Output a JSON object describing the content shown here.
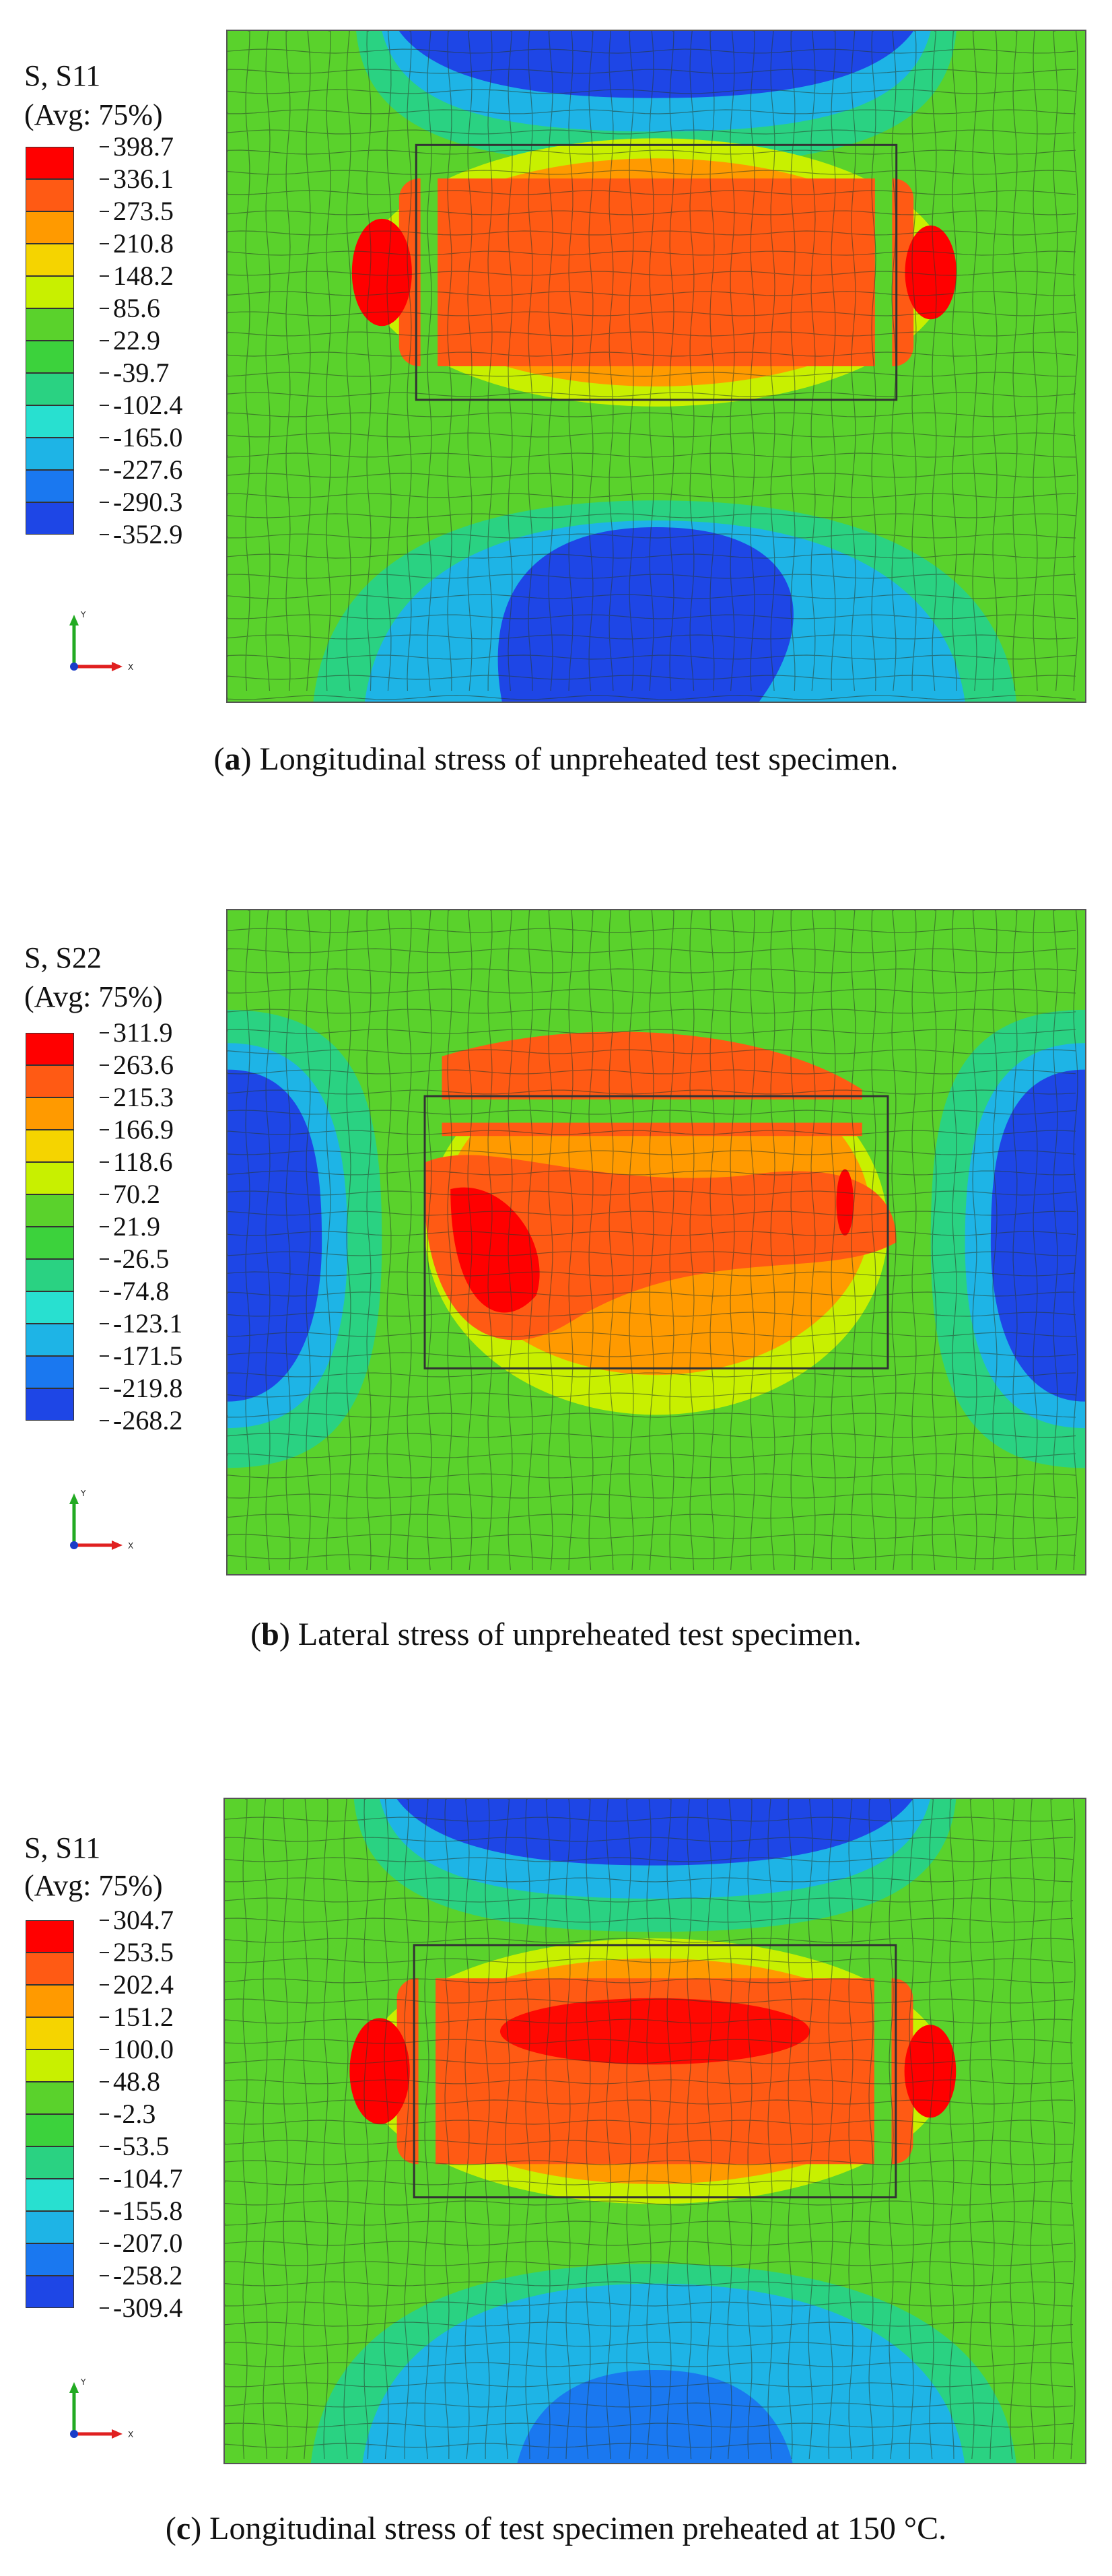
{
  "panels": [
    {
      "id": "a",
      "legend": {
        "variable": "S, S11",
        "averaging": "(Avg: 75%)",
        "values": [
          "398.7",
          "336.1",
          "273.5",
          "210.8",
          "148.2",
          "85.6",
          "22.9",
          "-39.7",
          "-102.4",
          "-165.0",
          "-227.6",
          "-290.3",
          "-352.9"
        ]
      },
      "caption": {
        "letter": "a",
        "open": "(",
        "close": ")",
        "text": " Longitudinal stress of unpreheated test specimen."
      },
      "triad": {
        "y_label": "Y",
        "x_label": "X"
      }
    },
    {
      "id": "b",
      "legend": {
        "variable": "S, S22",
        "averaging": "(Avg: 75%)",
        "values": [
          "311.9",
          "263.6",
          "215.3",
          "166.9",
          "118.6",
          "70.2",
          "21.9",
          "-26.5",
          "-74.8",
          "-123.1",
          "-171.5",
          "-219.8",
          "-268.2"
        ]
      },
      "caption": {
        "letter": "b",
        "open": "(",
        "close": ")",
        "text": " Lateral stress of unpreheated test specimen."
      },
      "triad": {
        "y_label": "Y",
        "x_label": "X"
      }
    },
    {
      "id": "c",
      "legend": {
        "variable": "S, S11",
        "averaging": "(Avg: 75%)",
        "values": [
          "304.7",
          "253.5",
          "202.4",
          "151.2",
          "100.0",
          "48.8",
          "-2.3",
          "-53.5",
          "-104.7",
          "-155.8",
          "-207.0",
          "-258.2",
          "-309.4"
        ]
      },
      "caption": {
        "letter": "c",
        "open": "(",
        "close": ")",
        "text": " Longitudinal stress of test specimen preheated at 150 °C."
      },
      "triad": {
        "y_label": "Y",
        "x_label": "X"
      }
    }
  ],
  "colors": {
    "scale": [
      "#ff0000",
      "#ff5a14",
      "#ff9a00",
      "#f5d400",
      "#c8f000",
      "#5ad22c",
      "#3cd23c",
      "#2ad282",
      "#28e0d0",
      "#1eb4e6",
      "#1a78f0",
      "#1e46e6",
      "#1a1ec8"
    ],
    "axis_y": "#22aa22",
    "axis_x": "#e02020",
    "axis_z": "#1a3cc8"
  }
}
